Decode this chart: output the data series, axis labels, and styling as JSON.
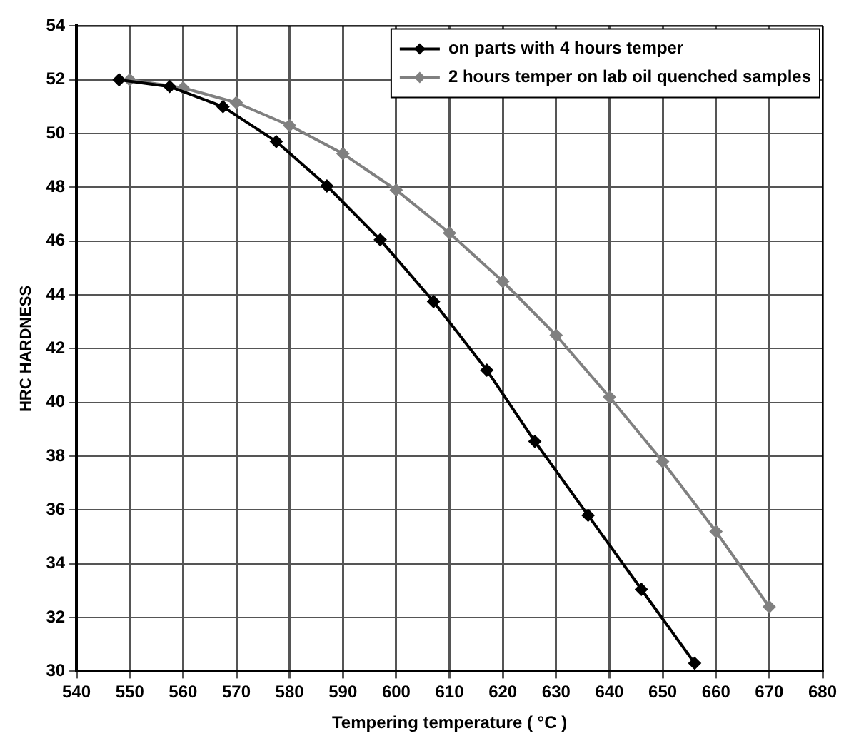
{
  "chart_data": {
    "type": "line",
    "xlabel": "Tempering temperature ( °C )",
    "ylabel": "HRC HARDNESS",
    "xlim": [
      540,
      680
    ],
    "xticks": [
      540,
      550,
      560,
      570,
      580,
      590,
      600,
      610,
      620,
      630,
      640,
      650,
      660,
      670,
      680
    ],
    "ylim": [
      30,
      54
    ],
    "yticks": [
      30,
      32,
      34,
      36,
      38,
      40,
      42,
      44,
      46,
      48,
      50,
      52,
      54
    ],
    "grid": true,
    "legend": "top right",
    "marker": "diamond",
    "line_style": "solid",
    "series": [
      {
        "name": "on parts with 4 hours temper",
        "color": "#000000",
        "x": [
          548,
          557.5,
          567.5,
          577.5,
          587,
          597,
          607,
          617,
          626,
          636,
          646,
          656
        ],
        "values": [
          52,
          51.75,
          51,
          49.7,
          48.05,
          46.05,
          43.75,
          41.2,
          38.55,
          35.8,
          33.05,
          30.3
        ]
      },
      {
        "name": "2 hours temper on lab oil quenched samples",
        "color": "#808080",
        "x": [
          550,
          560,
          570,
          580,
          590,
          600,
          610,
          620,
          630,
          640,
          650,
          660,
          670
        ],
        "values": [
          52,
          51.7,
          51.15,
          50.3,
          49.25,
          47.9,
          46.3,
          44.5,
          42.5,
          40.2,
          37.8,
          35.2,
          32.4
        ]
      }
    ]
  }
}
